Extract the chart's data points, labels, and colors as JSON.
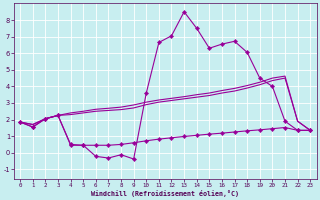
{
  "xlabel": "Windchill (Refroidissement éolien,°C)",
  "bg_color": "#c8eef0",
  "line_color": "#990099",
  "grid_color": "#ffffff",
  "xlim": [
    -0.5,
    23.5
  ],
  "ylim": [
    -1.6,
    9.0
  ],
  "xticks": [
    0,
    1,
    2,
    3,
    4,
    5,
    6,
    7,
    8,
    9,
    10,
    11,
    12,
    13,
    14,
    15,
    16,
    17,
    18,
    19,
    20,
    21,
    22,
    23
  ],
  "yticks": [
    -1,
    0,
    1,
    2,
    3,
    4,
    5,
    6,
    7,
    8
  ],
  "line_jagged_x": [
    0,
    1,
    2,
    3,
    4,
    5,
    6,
    7,
    8,
    9,
    10,
    11,
    12,
    13,
    14,
    15,
    16,
    17,
    18,
    19,
    20,
    21,
    22,
    23
  ],
  "line_jagged_y": [
    1.85,
    1.55,
    2.05,
    2.25,
    0.45,
    0.45,
    -0.22,
    -0.32,
    -0.12,
    -0.38,
    3.6,
    6.65,
    7.05,
    8.5,
    7.5,
    6.3,
    6.55,
    6.72,
    6.05,
    4.5,
    4.0,
    1.9,
    1.35,
    1.35
  ],
  "line_upper1_x": [
    0,
    1,
    2,
    3,
    4,
    5,
    6,
    7,
    8,
    9,
    10,
    11,
    12,
    13,
    14,
    15,
    16,
    17,
    18,
    19,
    20,
    21,
    22,
    23
  ],
  "line_upper1_y": [
    1.85,
    1.7,
    2.05,
    2.25,
    2.3,
    2.4,
    2.5,
    2.55,
    2.6,
    2.7,
    2.9,
    3.05,
    3.15,
    3.25,
    3.35,
    3.45,
    3.6,
    3.72,
    3.9,
    4.1,
    4.35,
    4.5,
    1.9,
    1.35
  ],
  "line_upper2_x": [
    0,
    1,
    2,
    3,
    4,
    5,
    6,
    7,
    8,
    9,
    10,
    11,
    12,
    13,
    14,
    15,
    16,
    17,
    18,
    19,
    20,
    21,
    22,
    23
  ],
  "line_upper2_y": [
    1.85,
    1.7,
    2.05,
    2.25,
    2.4,
    2.5,
    2.62,
    2.68,
    2.75,
    2.88,
    3.05,
    3.18,
    3.28,
    3.38,
    3.5,
    3.6,
    3.75,
    3.88,
    4.05,
    4.25,
    4.5,
    4.62,
    1.9,
    1.35
  ],
  "line_lower_x": [
    0,
    1,
    2,
    3,
    4,
    5,
    6,
    7,
    8,
    9,
    10,
    11,
    12,
    13,
    14,
    15,
    16,
    17,
    18,
    19,
    20,
    21,
    22,
    23
  ],
  "line_lower_y": [
    1.85,
    1.55,
    2.05,
    2.25,
    0.5,
    0.45,
    0.45,
    0.45,
    0.5,
    0.6,
    0.72,
    0.82,
    0.9,
    0.98,
    1.05,
    1.12,
    1.18,
    1.25,
    1.32,
    1.38,
    1.45,
    1.52,
    1.35,
    1.35
  ]
}
